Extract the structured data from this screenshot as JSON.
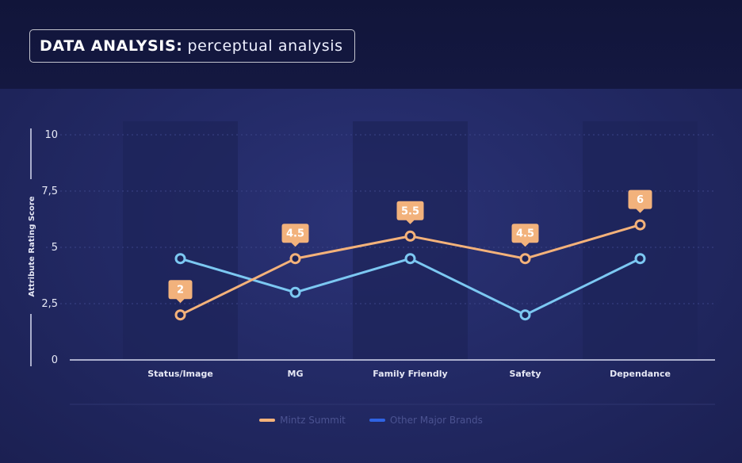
{
  "header": {
    "title_bold": "DATA ANALYSIS:",
    "title_light": "perceptual analysis"
  },
  "colors": {
    "mintz": "#f4b27a",
    "mintz_label_bg": "#f2b27c",
    "other": "#7cc8f2",
    "other_legend": "#2f63e3",
    "axis": "#d9dcf2",
    "tick_text": "#e6e8f5",
    "grid": "#3b4487",
    "column_dark": "#1e2459"
  },
  "chart_data": {
    "type": "line",
    "title": "",
    "xlabel": "",
    "ylabel": "Attribute Rating Score",
    "ylim": [
      0,
      10
    ],
    "y_ticks": [
      "0",
      "2,5",
      "5",
      "7,5",
      "10"
    ],
    "categories": [
      "Status/Image",
      "MG",
      "Family Friendly",
      "Safety",
      "Dependance"
    ],
    "series": [
      {
        "name": "Mintz Summit",
        "values": [
          2,
          4.5,
          5.5,
          4.5,
          6
        ],
        "data_labels": [
          "2",
          "4.5",
          "5.5",
          "4.5",
          "6"
        ]
      },
      {
        "name": "Other Major Brands",
        "values": [
          4.5,
          3,
          4.5,
          2,
          4.5
        ]
      }
    ],
    "grid": true,
    "legend_position": "bottom-center"
  }
}
